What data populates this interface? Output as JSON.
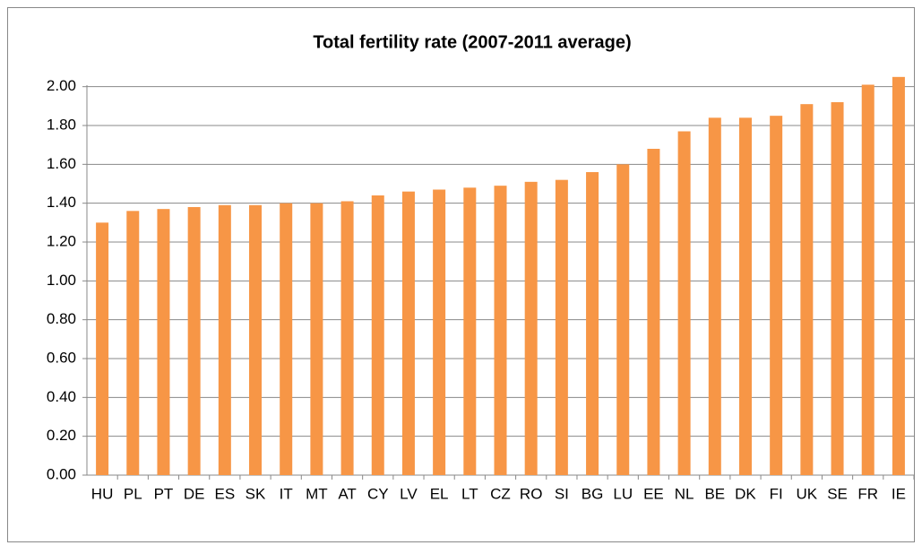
{
  "chart_data": {
    "type": "bar",
    "title": "Total fertility rate (2007-2011 average)",
    "categories": [
      "HU",
      "PL",
      "PT",
      "DE",
      "ES",
      "SK",
      "IT",
      "MT",
      "AT",
      "CY",
      "LV",
      "EL",
      "LT",
      "CZ",
      "RO",
      "SI",
      "BG",
      "LU",
      "EE",
      "NL",
      "BE",
      "DK",
      "FI",
      "UK",
      "SE",
      "FR",
      "IE"
    ],
    "values": [
      1.3,
      1.36,
      1.37,
      1.38,
      1.39,
      1.39,
      1.4,
      1.4,
      1.41,
      1.44,
      1.46,
      1.47,
      1.48,
      1.49,
      1.51,
      1.52,
      1.56,
      1.6,
      1.68,
      1.77,
      1.84,
      1.84,
      1.85,
      1.91,
      1.92,
      2.01,
      2.05
    ],
    "color": "#f79646",
    "ylim": [
      0,
      2.1
    ],
    "yticks": [
      {
        "value": 0,
        "label": "0.00"
      },
      {
        "value": 0.2,
        "label": "0.20"
      },
      {
        "value": 0.4,
        "label": "0.40"
      },
      {
        "value": 0.6,
        "label": "0.60"
      },
      {
        "value": 0.8,
        "label": "0.80"
      },
      {
        "value": 1,
        "label": "1.00"
      },
      {
        "value": 1.2,
        "label": "1.20"
      },
      {
        "value": 1.4,
        "label": "1.40"
      },
      {
        "value": 1.6,
        "label": "1.60"
      },
      {
        "value": 1.8,
        "label": "1.80"
      },
      {
        "value": 2,
        "label": "2.00"
      }
    ],
    "grid": true
  }
}
